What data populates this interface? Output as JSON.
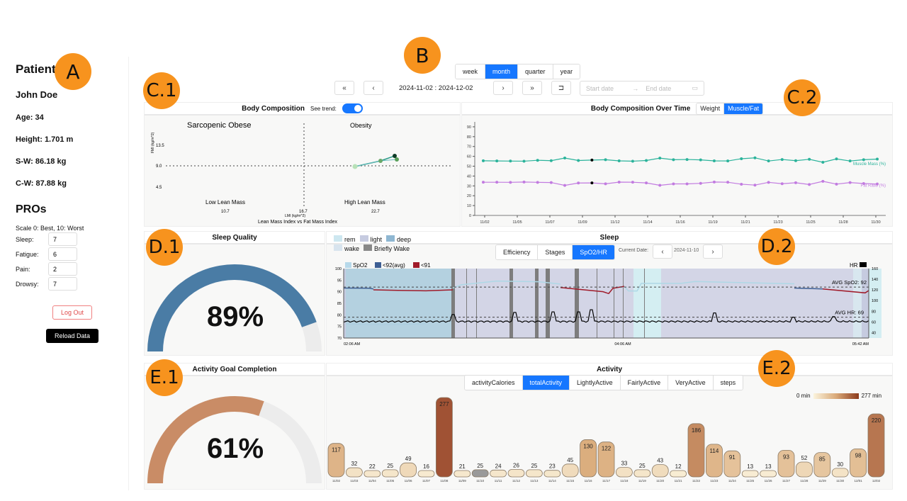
{
  "badges": {
    "A": "A",
    "B": "B",
    "C1": "C.1",
    "C2": "C.2",
    "D1": "D.1",
    "D2": "D.2",
    "E1": "E.1",
    "E2": "E.2"
  },
  "patient": {
    "heading": "Patient",
    "name": "John Doe",
    "age": "Age: 34",
    "height": "Height: 1.701 m",
    "start_weight": "S-W: 86.18 kg",
    "current_weight": "C-W: 87.88 kg"
  },
  "pros": {
    "heading": "PROs",
    "scale": "Scale 0: Best, 10: Worst",
    "items": [
      {
        "label": "Sleep:",
        "value": "7"
      },
      {
        "label": "Fatigue:",
        "value": "6"
      },
      {
        "label": "Pain:",
        "value": "2"
      },
      {
        "label": "Drowsy:",
        "value": "7"
      }
    ],
    "logout_label": "Log Out",
    "reload_label": "Reload Data"
  },
  "period": {
    "options": [
      "week",
      "month",
      "quarter",
      "year"
    ],
    "selected": "month",
    "range": "2024-11-02 : 2024-12-02",
    "nav": {
      "first": "«",
      "prev": "‹",
      "next": "›",
      "last": "»",
      "reset": "⊐"
    },
    "start_placeholder": "Start date",
    "end_placeholder": "End date"
  },
  "body_comp": {
    "title": "Body Composition",
    "trend_label": "See trend:",
    "trend_on": true,
    "quad_tl": "Sarcopenic Obese",
    "quad_tr": "Obesity",
    "bottom_left": "Low Lean Mass",
    "bottom_right": "High Lean Mass",
    "y_label": "FMI (kg/m^2)",
    "x_label": "LMI (kg/m^2)",
    "caption": "Lean Mass Index vs Fat Mass Index",
    "y_ticks": [
      "13.5",
      "9.0",
      "4.5"
    ],
    "x_ticks": [
      "10.7",
      "16.7",
      "22.7"
    ]
  },
  "body_time": {
    "title": "Body Composition Over Time",
    "tabs": [
      "Weight",
      "Muscle/Fat"
    ],
    "selected": "Muscle/Fat",
    "muscle_label": "Muscle Mass (%)",
    "fat_label": "Fat Ratio (%)",
    "y_ticks": [
      "0",
      "10",
      "20",
      "30",
      "40",
      "50",
      "60",
      "70",
      "80",
      "90"
    ],
    "x_ticks": [
      "11/02",
      "11/05",
      "11/07",
      "11/09",
      "11/12",
      "11/14",
      "11/16",
      "11/19",
      "11/21",
      "11/23",
      "11/25",
      "11/28",
      "11/30"
    ],
    "colors": {
      "muscle": "#2bb39b",
      "fat": "#c27ce0"
    }
  },
  "sleep_quality": {
    "title": "Sleep Quality",
    "value": "89%",
    "percent": 89,
    "color": "#4a7ca5"
  },
  "sleep": {
    "title": "Sleep",
    "legend": [
      "rem",
      "light",
      "deep",
      "wake",
      "Briefly Wake"
    ],
    "legend_colors": [
      "#cde7f0",
      "#c6cbe0",
      "#8fb7d2",
      "#d8e4ee",
      "#888888"
    ],
    "tabs": [
      "Efficiency",
      "Stages",
      "SpO2/HR"
    ],
    "selected": "SpO2/HR",
    "current_date_label": "Current Date:",
    "current_date": "2024-11-10",
    "spo2_legend": [
      "SpO2",
      "<92(avg)",
      "<91"
    ],
    "hr_legend": "HR",
    "avg_spo2": "AVG SpO2: 92",
    "avg_hr": "AVG HR: 69",
    "y_left": [
      "100",
      "95",
      "90",
      "85",
      "80",
      "75",
      "70"
    ],
    "y_right": [
      "160",
      "140",
      "120",
      "100",
      "80",
      "60",
      "40"
    ],
    "x_ticks": [
      "02:06 AM",
      "04:06 AM",
      "05:42 AM"
    ]
  },
  "activity_goal": {
    "title": "Activity Goal Completion",
    "value": "61%",
    "percent": 61,
    "color": "#c98c66"
  },
  "activity": {
    "title": "Activity",
    "tabs": [
      "activityCalories",
      "totalActivity",
      "LightlyActive",
      "FairlyActive",
      "VeryActive",
      "steps"
    ],
    "selected": "totalActivity",
    "scale_min": "0 min",
    "scale_max": "277 min"
  },
  "chart_data": [
    {
      "type": "line",
      "title": "Body Composition Over Time",
      "x": [
        "11/02",
        "11/03",
        "11/04",
        "11/05",
        "11/06",
        "11/07",
        "11/08",
        "11/09",
        "11/10",
        "11/11",
        "11/12",
        "11/13",
        "11/14",
        "11/15",
        "11/16",
        "11/17",
        "11/18",
        "11/19",
        "11/20",
        "11/21",
        "11/22",
        "11/23",
        "11/24",
        "11/25",
        "11/26",
        "11/27",
        "11/28",
        "11/29",
        "11/30",
        "12/01"
      ],
      "series": [
        {
          "name": "Muscle Mass (%)",
          "values": [
            55.5,
            55.3,
            55.2,
            55.1,
            56,
            55.6,
            58.3,
            55.8,
            56.2,
            56.6,
            55.4,
            55.1,
            55.8,
            58.2,
            56.6,
            56.8,
            56.4,
            55.4,
            55.3,
            57.6,
            58.5,
            55.3,
            56.8,
            55.6,
            57,
            54,
            57.4,
            55.3,
            56.6,
            57.2
          ]
        },
        {
          "name": "Fat Ratio (%)",
          "values": [
            33.7,
            33.7,
            33.6,
            33.9,
            33.6,
            33.4,
            30.5,
            32.9,
            33,
            32.1,
            33.8,
            33.7,
            33,
            30.6,
            32,
            32,
            32.6,
            33.9,
            33.7,
            31.7,
            30.8,
            33.6,
            32.2,
            33.2,
            31.4,
            34.6,
            31.8,
            33.4,
            32.4,
            31.9
          ]
        }
      ],
      "ylim": [
        0,
        95
      ]
    },
    {
      "type": "bar",
      "title": "Activity (totalActivity, min)",
      "categories": [
        "11/02",
        "11/03",
        "11/04",
        "11/05",
        "11/06",
        "11/07",
        "11/08",
        "11/09",
        "11/10",
        "11/11",
        "11/12",
        "11/13",
        "11/14",
        "11/15",
        "11/16",
        "11/17",
        "11/18",
        "11/19",
        "11/20",
        "11/21",
        "11/22",
        "11/23",
        "11/24",
        "11/25",
        "11/26",
        "11/27",
        "11/28",
        "11/29",
        "11/30",
        "12/01",
        "12/02"
      ],
      "values": [
        117,
        32,
        22,
        25,
        49,
        16,
        277,
        21,
        25,
        24,
        26,
        25,
        23,
        45,
        130,
        122,
        33,
        25,
        43,
        12,
        186,
        114,
        91,
        13,
        13,
        93,
        52,
        85,
        30,
        98,
        220
      ]
    },
    {
      "type": "scatter",
      "title": "Lean Mass Index vs Fat Mass Index",
      "xlabel": "LMI (kg/m^2)",
      "ylabel": "FMI (kg/m^2)",
      "points": [
        [
          20.5,
          9.0
        ],
        [
          23.8,
          9.8
        ],
        [
          25.2,
          10.6
        ],
        [
          25.6,
          11.1
        ]
      ]
    }
  ]
}
